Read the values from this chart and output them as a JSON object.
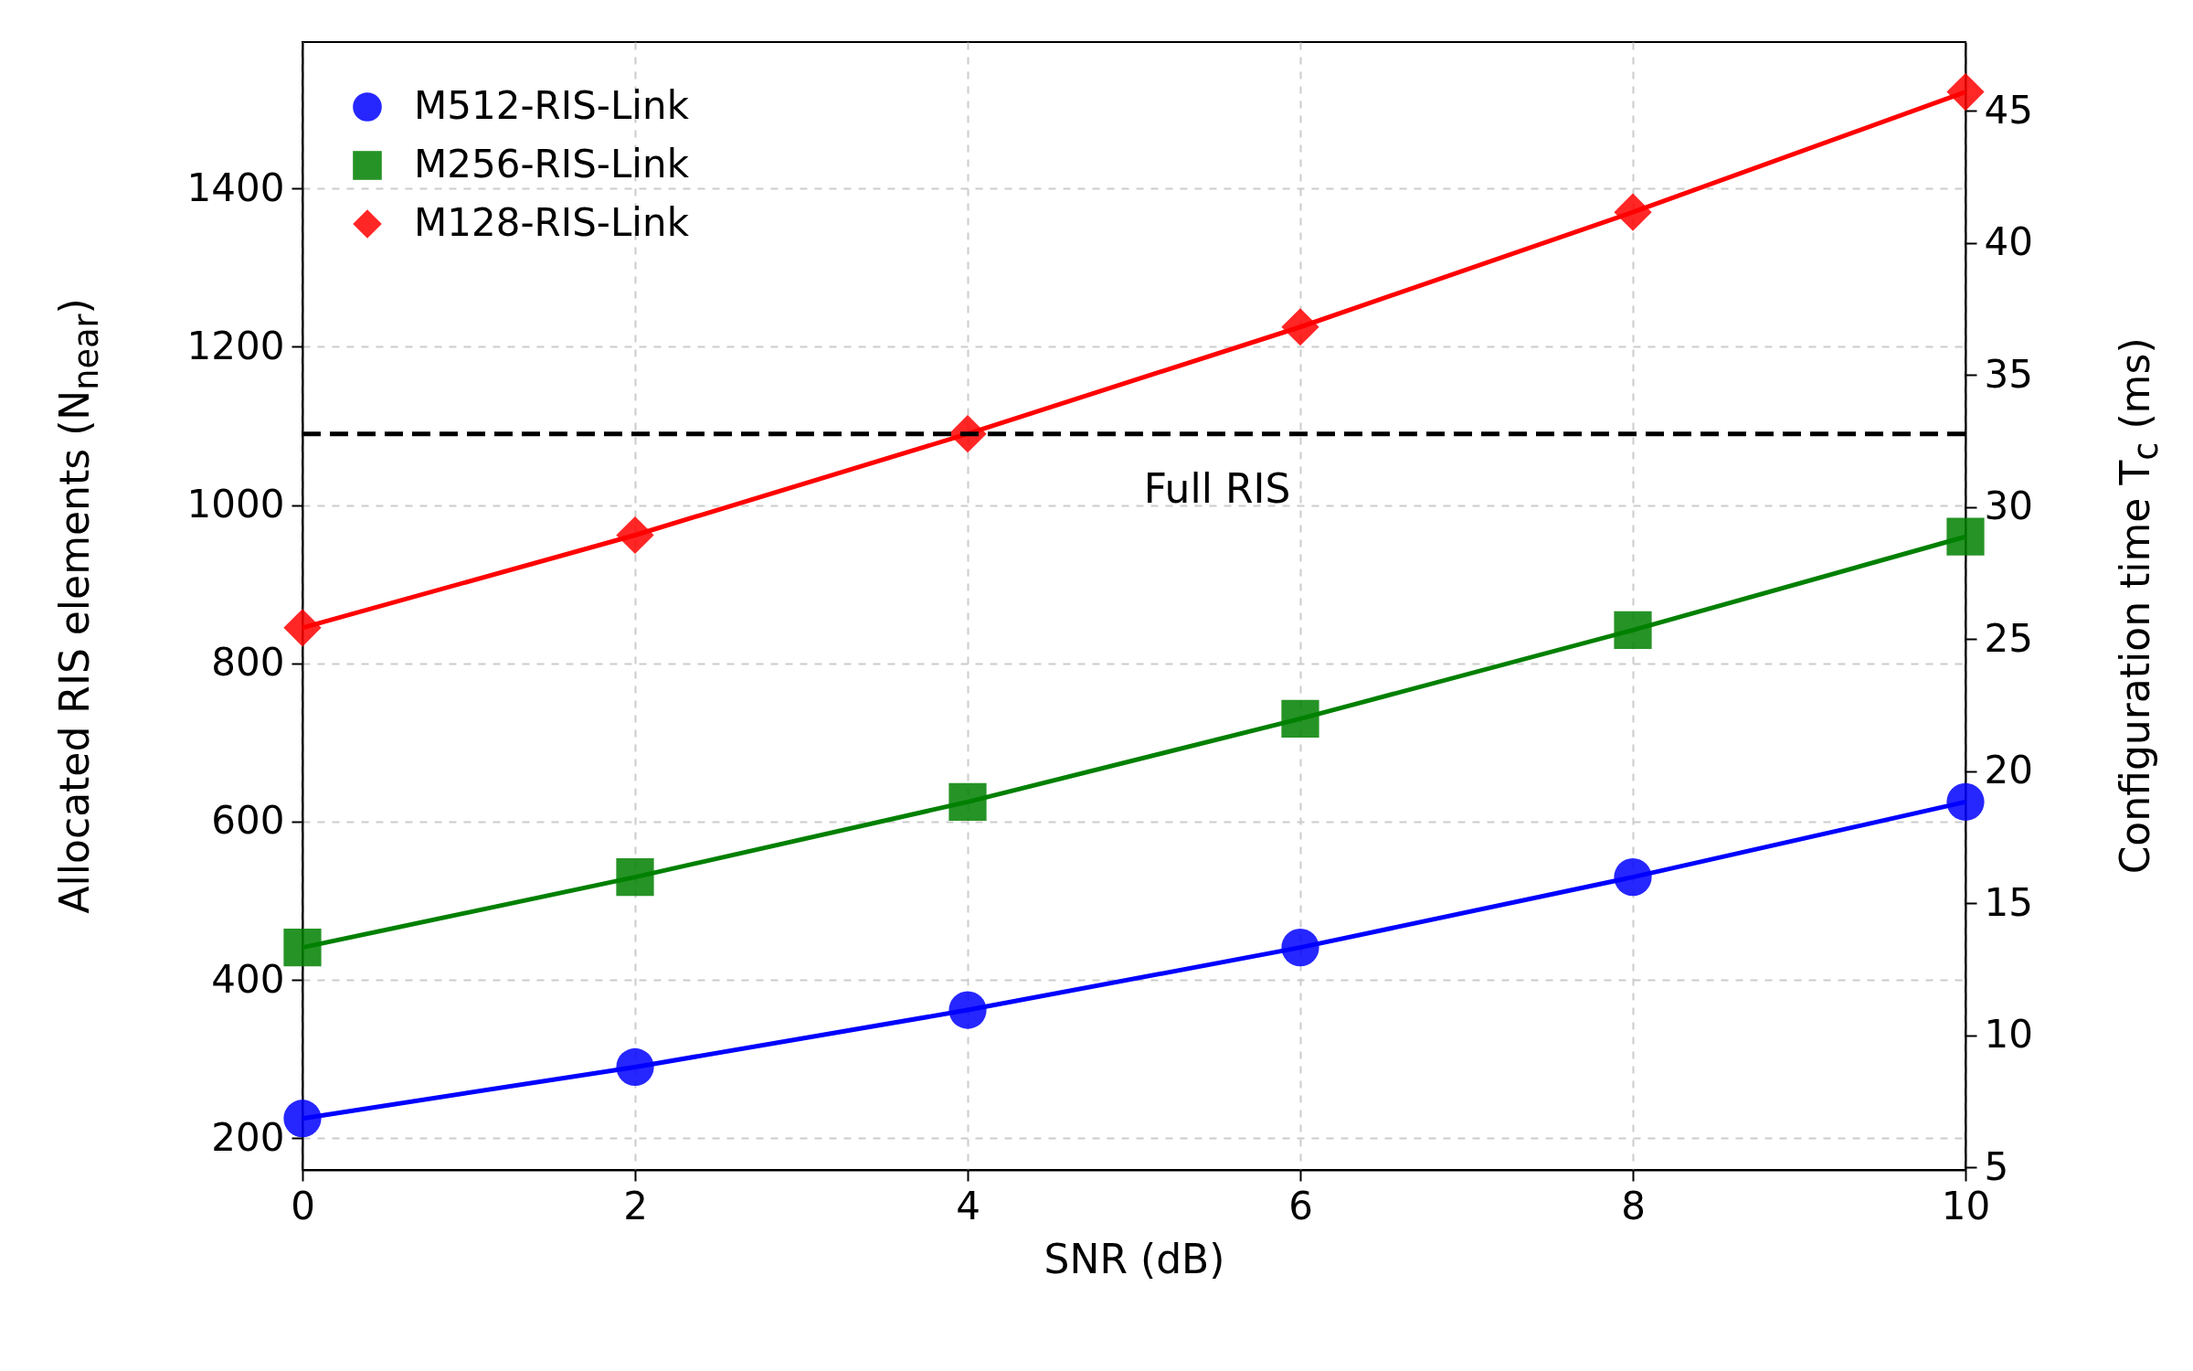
{
  "chart_data": {
    "type": "line",
    "xlabel": "SNR (dB)",
    "ylabel": "Allocated RIS elements (N$_{near}$)",
    "y2label": "Configuration time T$_{c}$ (ms)",
    "x": [
      0,
      2,
      4,
      6,
      8,
      10
    ],
    "series": [
      {
        "name": "M512-RIS-Link",
        "color": "#0000ff",
        "marker": "circle",
        "values": [
          225,
          290,
          362,
          441,
          530,
          625
        ]
      },
      {
        "name": "M256-RIS-Link",
        "color": "#008000",
        "marker": "square",
        "values": [
          441,
          530,
          625,
          730,
          842,
          960
        ]
      },
      {
        "name": "M128-RIS-Link",
        "color": "#ff0000",
        "marker": "diamond",
        "values": [
          845,
          962,
          1090,
          1225,
          1370,
          1522
        ]
      }
    ],
    "xlim": [
      0,
      10
    ],
    "xticks": [
      0,
      2,
      4,
      6,
      8,
      10
    ],
    "ylim": [
      160,
      1585
    ],
    "yticks": [
      200,
      400,
      600,
      800,
      1000,
      1200,
      1400
    ],
    "y2lim": [
      4.9,
      47.6
    ],
    "y2ticks": [
      5,
      10,
      15,
      20,
      25,
      30,
      35,
      40,
      45
    ],
    "ref_lines": [
      {
        "axis": "y",
        "value": 1090,
        "label": "Full RIS",
        "color": "#000000",
        "line_style": "dashed"
      }
    ],
    "grid": true,
    "legend": "top left",
    "line_style": "solid"
  }
}
